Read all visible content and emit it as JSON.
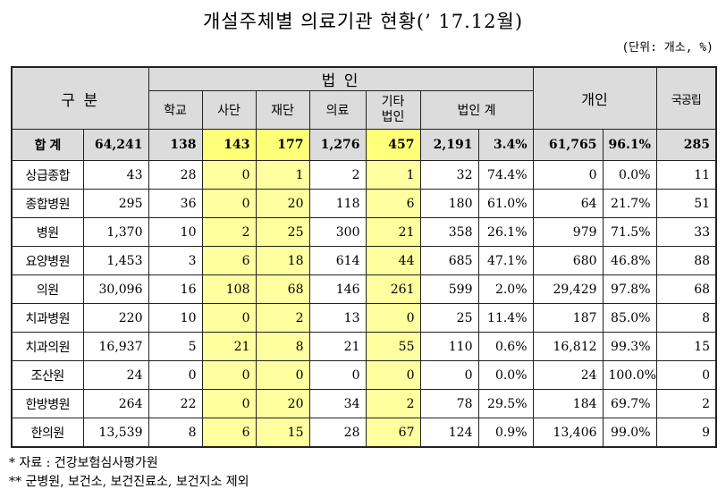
{
  "title": "개설주체별 의료기관 현황(’ 17.12월)",
  "unit": "(단위: 개소, %)",
  "header": {
    "category": "구 분",
    "corp_group": "법 인",
    "corp_cols": [
      "학교",
      "사단",
      "재단",
      "의료",
      "기타 법인"
    ],
    "corp_total": "법인 계",
    "individual": "개인",
    "public": "국공립"
  },
  "highlight_color": "#ffffa0",
  "rows": [
    {
      "label": "합 계",
      "cells": [
        "64,241",
        "138",
        "143",
        "177",
        "1,276",
        "457",
        "2,191",
        "3.4%",
        "61,765",
        "96.1%",
        "285"
      ]
    },
    {
      "label": "상급종합",
      "cells": [
        "43",
        "28",
        "0",
        "1",
        "2",
        "1",
        "32",
        "74.4%",
        "0",
        "0.0%",
        "11"
      ]
    },
    {
      "label": "종합병원",
      "cells": [
        "295",
        "36",
        "0",
        "20",
        "118",
        "6",
        "180",
        "61.0%",
        "64",
        "21.7%",
        "51"
      ]
    },
    {
      "label": "병원",
      "cells": [
        "1,370",
        "10",
        "2",
        "25",
        "300",
        "21",
        "358",
        "26.1%",
        "979",
        "71.5%",
        "33"
      ]
    },
    {
      "label": "요양병원",
      "cells": [
        "1,453",
        "3",
        "6",
        "18",
        "614",
        "44",
        "685",
        "47.1%",
        "680",
        "46.8%",
        "88"
      ]
    },
    {
      "label": "의원",
      "cells": [
        "30,096",
        "16",
        "108",
        "68",
        "146",
        "261",
        "599",
        "2.0%",
        "29,429",
        "97.8%",
        "68"
      ]
    },
    {
      "label": "치과병원",
      "cells": [
        "220",
        "10",
        "0",
        "2",
        "13",
        "0",
        "25",
        "11.4%",
        "187",
        "85.0%",
        "8"
      ]
    },
    {
      "label": "치과의원",
      "cells": [
        "16,937",
        "5",
        "21",
        "8",
        "21",
        "55",
        "110",
        "0.6%",
        "16,812",
        "99.3%",
        "15"
      ]
    },
    {
      "label": "조산원",
      "cells": [
        "24",
        "0",
        "0",
        "0",
        "0",
        "0",
        "0",
        "0.0%",
        "24",
        "100.0%",
        "0"
      ]
    },
    {
      "label": "한방병원",
      "cells": [
        "264",
        "22",
        "0",
        "20",
        "34",
        "2",
        "78",
        "29.5%",
        "184",
        "69.7%",
        "2"
      ]
    },
    {
      "label": "한의원",
      "cells": [
        "13,539",
        "8",
        "6",
        "15",
        "28",
        "67",
        "124",
        "0.9%",
        "13,406",
        "99.0%",
        "9"
      ]
    }
  ],
  "notes": [
    "* 자료 : 건강보험심사평가원",
    "** 군병원, 보건소, 보건진료소, 보건지소 제외"
  ]
}
